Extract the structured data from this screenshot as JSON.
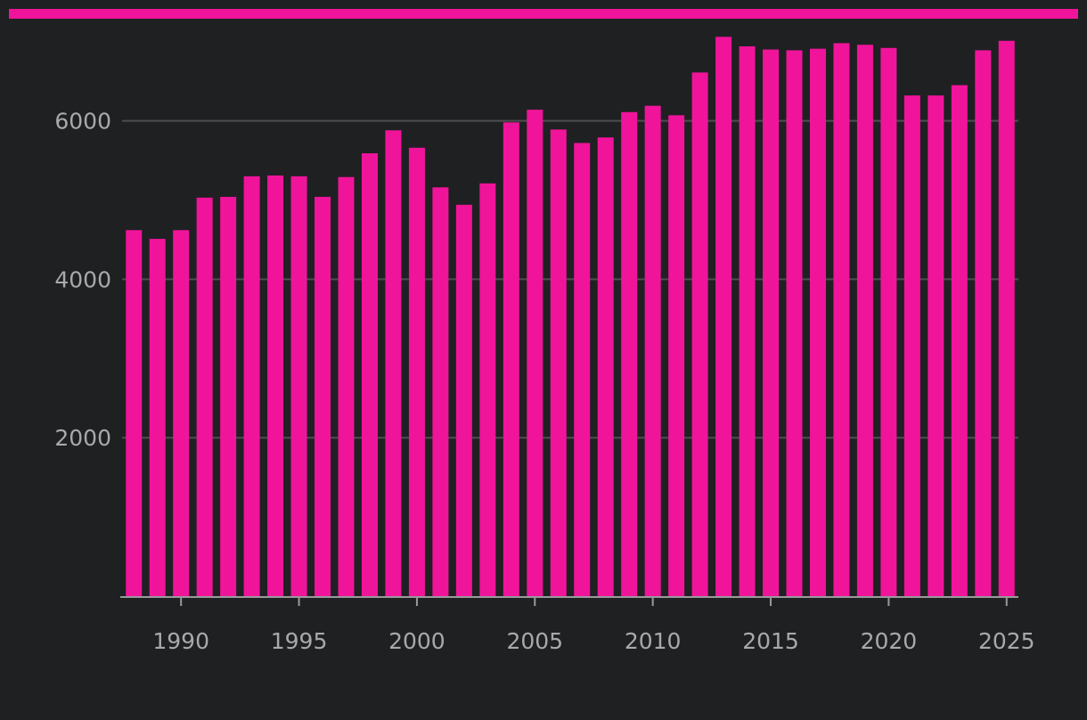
{
  "theme": {
    "background": "#1f2022",
    "accent": "#f0149b",
    "gridline": "#4e4e50",
    "axis": "#9a9a9c",
    "tick_text": "#a9a9ab"
  },
  "chart_data": {
    "type": "bar",
    "x": [
      1988,
      1989,
      1990,
      1991,
      1992,
      1993,
      1994,
      1995,
      1996,
      1997,
      1998,
      1999,
      2000,
      2001,
      2002,
      2003,
      2004,
      2005,
      2006,
      2007,
      2008,
      2009,
      2010,
      2011,
      2012,
      2013,
      2014,
      2015,
      2016,
      2017,
      2018,
      2019,
      2020,
      2021,
      2022,
      2023,
      2024,
      2025
    ],
    "values": [
      4620,
      4510,
      4620,
      5030,
      5040,
      5300,
      5310,
      5300,
      5040,
      5290,
      5590,
      5880,
      5660,
      5160,
      4940,
      5210,
      5980,
      6140,
      5890,
      5720,
      5790,
      6110,
      6190,
      6070,
      6610,
      7060,
      6940,
      6900,
      6890,
      6910,
      6980,
      6960,
      6920,
      6320,
      6320,
      6450,
      6890,
      7010
    ],
    "title": "",
    "xlabel": "",
    "ylabel": "",
    "xlim": [
      1987.5,
      2025.5
    ],
    "ylim": [
      0,
      7300
    ],
    "x_ticks": [
      1990,
      1995,
      2000,
      2005,
      2010,
      2015,
      2020,
      2025
    ],
    "x_tick_labels": [
      "1990",
      "1995",
      "2000",
      "2005",
      "2010",
      "2015",
      "2020",
      "2025"
    ],
    "y_ticks": [
      2000,
      4000,
      6000
    ],
    "y_tick_labels": [
      "2000",
      "4000",
      "6000"
    ],
    "grid": "horizontal",
    "legend": "none"
  }
}
